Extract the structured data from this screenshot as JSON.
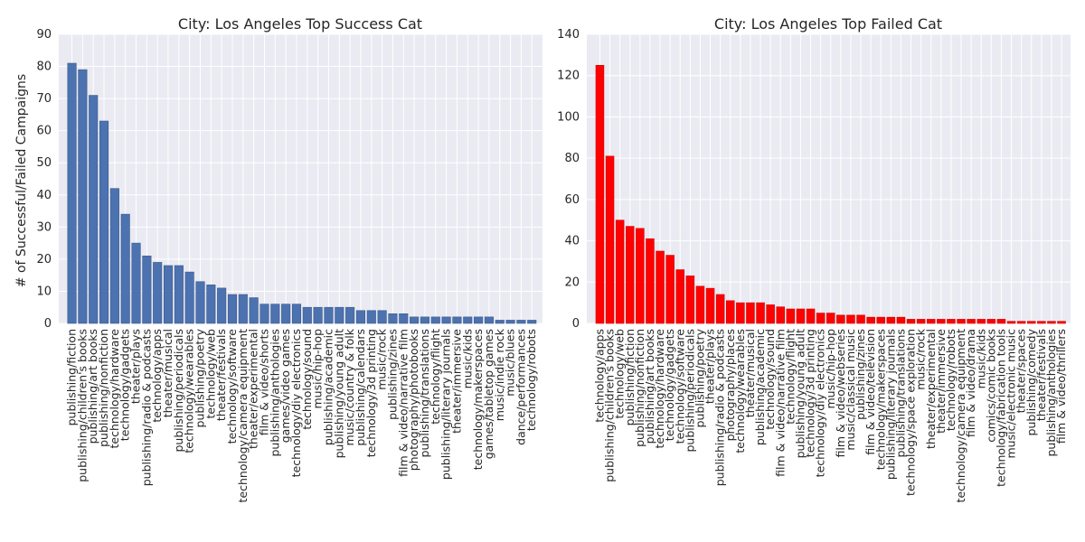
{
  "ylabel": "# of Successful/Failed Campaigns",
  "chart_data": [
    {
      "type": "bar",
      "title": "City: Los Angeles Top Success Cat",
      "xlabel": "",
      "ylabel": "# of Successful/Failed Campaigns",
      "ylim": [
        0,
        90
      ],
      "yticks": [
        0,
        10,
        20,
        30,
        40,
        50,
        60,
        70,
        80,
        90
      ],
      "grid": true,
      "color": "#4c72b0",
      "categories": [
        "publishing/fiction",
        "publishing/children's books",
        "publishing/art books",
        "publishing/nonfiction",
        "technology/hardware",
        "technology/gadgets",
        "theater/plays",
        "publishing/radio & podcasts",
        "technology/apps",
        "theater/musical",
        "publishing/periodicals",
        "technology/wearables",
        "publishing/poetry",
        "technology/web",
        "theater/festivals",
        "technology/software",
        "technology/camera equipment",
        "theater/experimental",
        "film & video/shorts",
        "publishing/anthologies",
        "games/video games",
        "technology/diy electronics",
        "technology/sound",
        "music/hip-hop",
        "publishing/academic",
        "publishing/young adult",
        "music/country & folk",
        "publishing/calendars",
        "technology/3d printing",
        "music/rock",
        "publishing/zines",
        "film & video/narrative film",
        "photography/photobooks",
        "publishing/translations",
        "technology/flight",
        "publishing/literary journals",
        "theater/immersive",
        "music/kids",
        "technology/makerspaces",
        "games/tabletop games",
        "music/indie rock",
        "music/blues",
        "dance/performances",
        "technology/robots"
      ],
      "values": [
        81,
        79,
        71,
        63,
        42,
        34,
        25,
        21,
        19,
        18,
        18,
        16,
        13,
        12,
        11,
        9,
        9,
        8,
        6,
        6,
        6,
        6,
        5,
        5,
        5,
        5,
        5,
        4,
        4,
        4,
        3,
        3,
        2,
        2,
        2,
        2,
        2,
        2,
        2,
        2,
        1,
        1,
        1,
        1
      ]
    },
    {
      "type": "bar",
      "title": "City: Los Angeles Top Failed Cat",
      "xlabel": "",
      "ylabel": "",
      "ylim": [
        0,
        140
      ],
      "yticks": [
        0,
        20,
        40,
        60,
        80,
        100,
        120,
        140
      ],
      "grid": true,
      "color": "#ff0000",
      "categories": [
        "technology/apps",
        "publishing/children's books",
        "technology/web",
        "publishing/fiction",
        "publishing/nonfiction",
        "publishing/art books",
        "technology/hardware",
        "technology/gadgets",
        "technology/software",
        "publishing/periodicals",
        "publishing/poetry",
        "theater/plays",
        "publishing/radio & podcasts",
        "photography/places",
        "technology/wearables",
        "theater/musical",
        "publishing/academic",
        "technology/sound",
        "film & video/narrative film",
        "technology/flight",
        "publishing/young adult",
        "technology/3d printing",
        "technology/diy electronics",
        "music/hip-hop",
        "film & video/webseries",
        "music/classical music",
        "publishing/zines",
        "film & video/television",
        "technology/makerspaces",
        "publishing/literary journals",
        "publishing/translations",
        "technology/space exploration",
        "music/rock",
        "theater/experimental",
        "theater/immersive",
        "technology/robots",
        "technology/camera equipment",
        "film & video/drama",
        "music/kids",
        "comics/comic books",
        "technology/fabrication tools",
        "music/electronic music",
        "theater/spaces",
        "publishing/comedy",
        "theater/festivals",
        "publishing/anthologies",
        "film & video/thrillers"
      ],
      "values": [
        125,
        81,
        50,
        47,
        46,
        41,
        35,
        33,
        26,
        23,
        18,
        17,
        14,
        11,
        10,
        10,
        10,
        9,
        8,
        7,
        7,
        7,
        5,
        5,
        4,
        4,
        4,
        3,
        3,
        3,
        3,
        2,
        2,
        2,
        2,
        2,
        2,
        2,
        2,
        2,
        2,
        1,
        1,
        1,
        1,
        1,
        1
      ]
    }
  ]
}
